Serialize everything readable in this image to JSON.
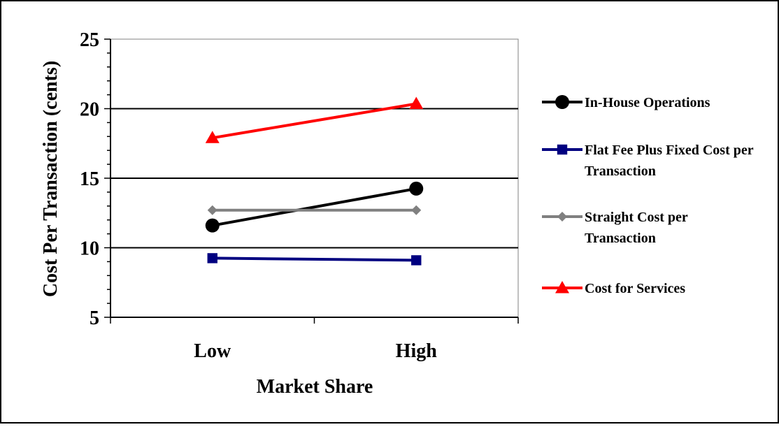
{
  "chart_data": {
    "type": "line",
    "title": "",
    "xlabel": "Market Share",
    "ylabel": "Cost Per Transaction (cents)",
    "categories": [
      "Low",
      "High"
    ],
    "ylim": [
      5,
      25
    ],
    "yticks": [
      "5",
      "10",
      "15",
      "20",
      "25"
    ],
    "grid": "horizontal major gridlines",
    "legend_position": "right",
    "series": [
      {
        "name": "In-House Operations",
        "values": [
          11.6,
          14.25
        ],
        "color": "#000000",
        "marker": "circle"
      },
      {
        "name": "Flat Fee Plus Fixed Cost per Transaction",
        "values": [
          9.25,
          9.1
        ],
        "color": "#000080",
        "marker": "square"
      },
      {
        "name": "Straight Cost per Transaction",
        "values": [
          12.7,
          12.7
        ],
        "color": "#808080",
        "marker": "diamond"
      },
      {
        "name": "Cost for Services",
        "values": [
          17.9,
          20.35
        ],
        "color": "#ff0000",
        "marker": "triangle"
      }
    ]
  }
}
